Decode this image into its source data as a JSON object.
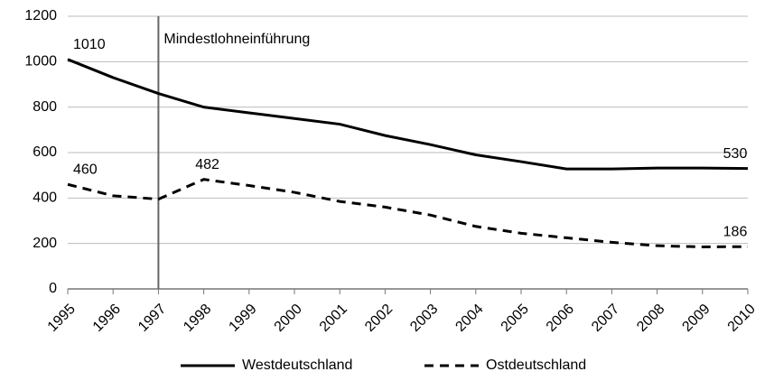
{
  "chart_data": {
    "type": "line",
    "x": [
      1995,
      1996,
      1997,
      1998,
      1999,
      2000,
      2001,
      2002,
      2003,
      2004,
      2005,
      2006,
      2007,
      2008,
      2009,
      2010
    ],
    "xlim": [
      1995,
      2010
    ],
    "xticks": [
      1995,
      1996,
      1997,
      1998,
      1999,
      2000,
      2001,
      2002,
      2003,
      2004,
      2005,
      2006,
      2007,
      2008,
      2009,
      2010
    ],
    "ylim": [
      0,
      1200
    ],
    "yticks": [
      0,
      200,
      400,
      600,
      800,
      1000,
      1200
    ],
    "grid": true,
    "series": [
      {
        "name": "Westdeutschland",
        "color": "#000000",
        "dash": "solid",
        "values": [
          1010,
          930,
          860,
          800,
          775,
          750,
          725,
          675,
          635,
          590,
          560,
          528,
          528,
          532,
          532,
          530
        ],
        "label_points": [
          0,
          15
        ]
      },
      {
        "name": "Ostdeutschland",
        "color": "#000000",
        "dash": "dashed",
        "values": [
          460,
          410,
          395,
          482,
          455,
          425,
          385,
          360,
          325,
          275,
          245,
          225,
          205,
          190,
          185,
          186
        ],
        "label_points": [
          0,
          3,
          15
        ]
      }
    ],
    "annotation": {
      "x": 1997,
      "text": "Mindestlohneinführung"
    },
    "legend": "bottom"
  }
}
